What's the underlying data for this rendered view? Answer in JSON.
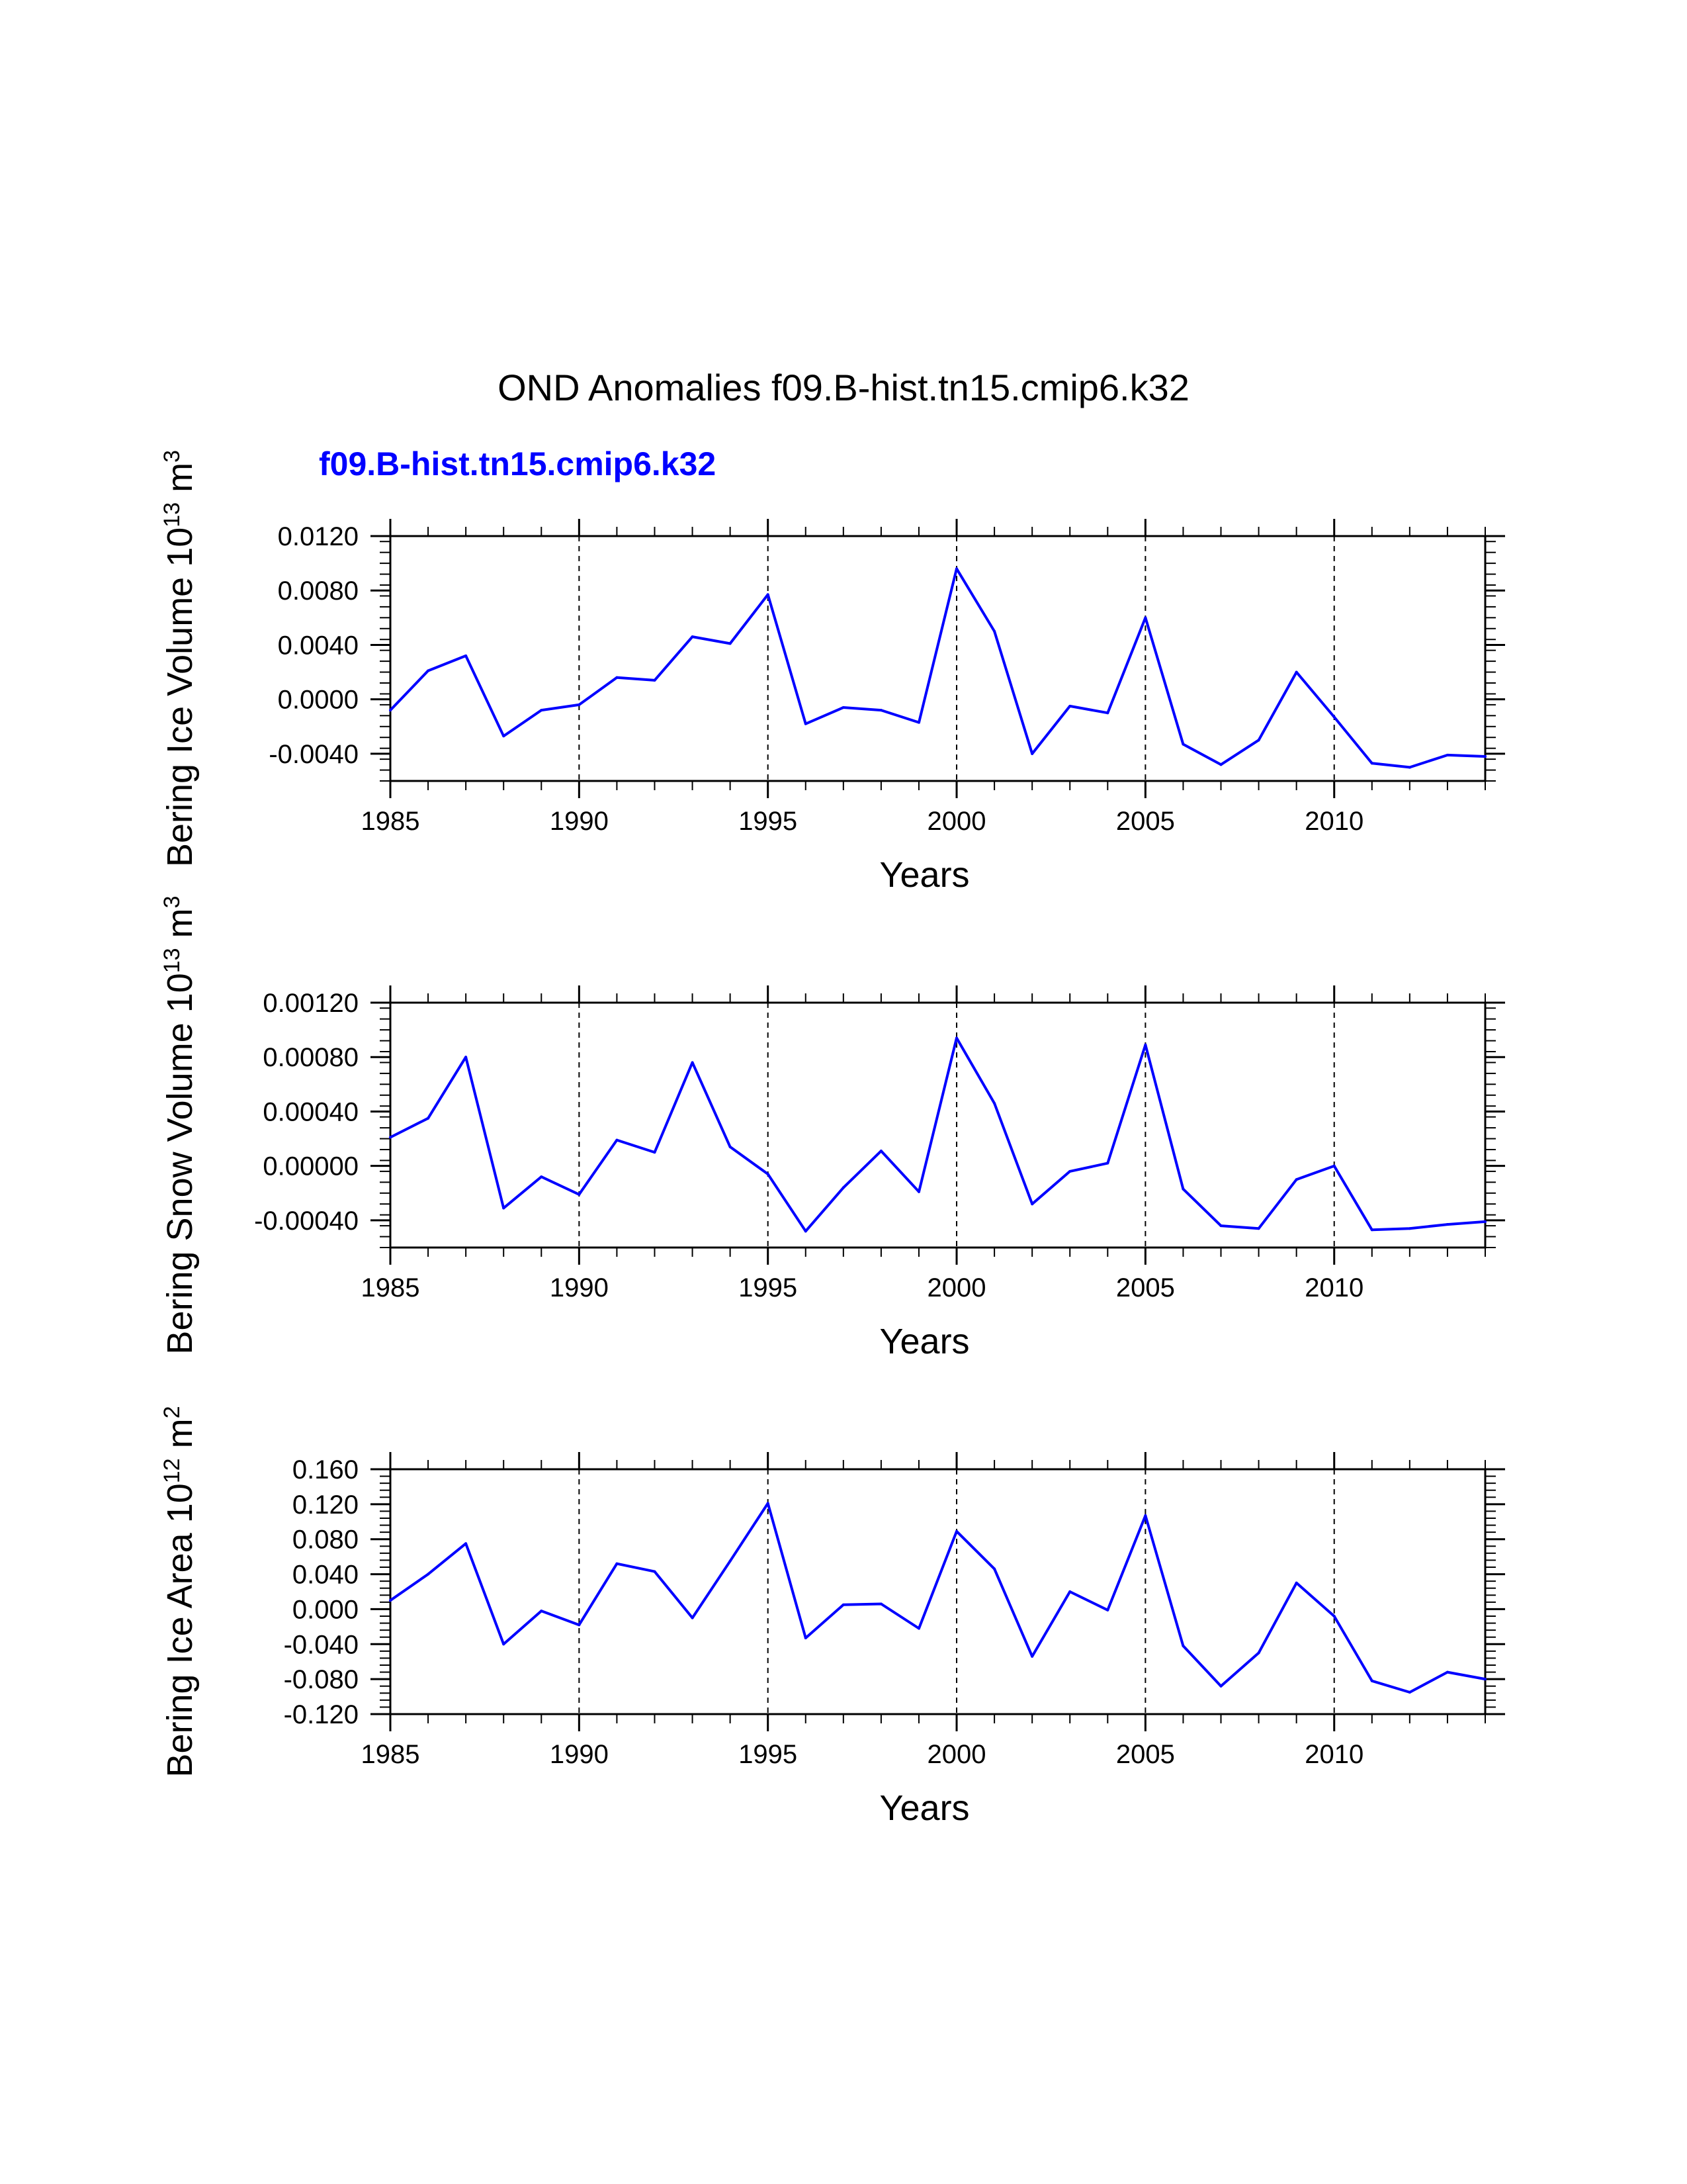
{
  "title": "OND Anomalies f09.B-hist.tn15.cmip6.k32",
  "subtitle": "f09.B-hist.tn15.cmip6.k32",
  "colors": {
    "series": "#0000ff",
    "axes": "#000000",
    "grid": "#000000",
    "subtitle": "#0000ff"
  },
  "chart_data": [
    {
      "type": "line",
      "ylabel": {
        "main": "Bering Ice Volume 10",
        "exp": "13",
        "unit": " m",
        "unit_exp": "3"
      },
      "xlabel": "Years",
      "xlim": [
        1985,
        2014
      ],
      "ylim": [
        -0.006,
        0.012
      ],
      "x_ticks": [
        1985,
        1990,
        1995,
        2000,
        2005,
        2010
      ],
      "x_tick_labels": [
        "1985",
        "1990",
        "1995",
        "2000",
        "2005",
        "2010"
      ],
      "y_ticks": [
        -0.004,
        0.0,
        0.004,
        0.008,
        0.012
      ],
      "y_tick_labels": [
        "-0.0040",
        "0.0000",
        "0.0040",
        "0.0080",
        "0.0120"
      ],
      "y_minor_step": 0.0008,
      "grid_x": [
        1990,
        1995,
        2000,
        2005,
        2010
      ],
      "series": [
        {
          "name": "f09.B-hist.tn15.cmip6.k32",
          "x": [
            1985,
            1986,
            1987,
            1988,
            1989,
            1990,
            1991,
            1992,
            1993,
            1994,
            1995,
            1996,
            1997,
            1998,
            1999,
            2000,
            2001,
            2002,
            2003,
            2004,
            2005,
            2006,
            2007,
            2008,
            2009,
            2010,
            2011,
            2012,
            2013,
            2014
          ],
          "values": [
            -0.0008,
            0.0021,
            0.0032,
            -0.0027,
            -0.0008,
            -0.0004,
            0.0016,
            0.0014,
            0.0046,
            0.0041,
            0.0077,
            -0.0018,
            -0.0006,
            -0.0008,
            -0.0017,
            0.0096,
            0.005,
            -0.004,
            -0.0005,
            -0.001,
            0.006,
            -0.0033,
            -0.0048,
            -0.003,
            0.002,
            -0.0013,
            -0.0047,
            -0.005,
            -0.0041,
            -0.0042
          ]
        }
      ]
    },
    {
      "type": "line",
      "ylabel": {
        "main": "Bering Snow Volume 10",
        "exp": "13",
        "unit": " m",
        "unit_exp": "3"
      },
      "xlabel": "Years",
      "xlim": [
        1985,
        2014
      ],
      "ylim": [
        -0.0006,
        0.0012
      ],
      "x_ticks": [
        1985,
        1990,
        1995,
        2000,
        2005,
        2010
      ],
      "x_tick_labels": [
        "1985",
        "1990",
        "1995",
        "2000",
        "2005",
        "2010"
      ],
      "y_ticks": [
        -0.0004,
        0.0,
        0.0004,
        0.0008,
        0.0012
      ],
      "y_tick_labels": [
        "-0.00040",
        "0.00000",
        "0.00040",
        "0.00080",
        "0.00120"
      ],
      "y_minor_step": 8e-05,
      "grid_x": [
        1990,
        1995,
        2000,
        2005,
        2010
      ],
      "series": [
        {
          "name": "f09.B-hist.tn15.cmip6.k32",
          "x": [
            1985,
            1986,
            1987,
            1988,
            1989,
            1990,
            1991,
            1992,
            1993,
            1994,
            1995,
            1996,
            1997,
            1998,
            1999,
            2000,
            2001,
            2002,
            2003,
            2004,
            2005,
            2006,
            2007,
            2008,
            2009,
            2010,
            2011,
            2012,
            2013,
            2014
          ],
          "values": [
            0.00021,
            0.00035,
            0.0008,
            -0.00031,
            -8e-05,
            -0.00021,
            0.00019,
            0.0001,
            0.00076,
            0.00014,
            -6e-05,
            -0.00048,
            -0.00016,
            0.00011,
            -0.00019,
            0.00094,
            0.00046,
            -0.00028,
            -4e-05,
            2e-05,
            0.00089,
            -0.00017,
            -0.00044,
            -0.00046,
            -0.0001,
            0.0,
            -0.00047,
            -0.00046,
            -0.00043,
            -0.00041
          ]
        }
      ]
    },
    {
      "type": "line",
      "ylabel": {
        "main": "Bering Ice Area 10",
        "exp": "12",
        "unit": " m",
        "unit_exp": "2"
      },
      "xlabel": "Years",
      "xlim": [
        1985,
        2014
      ],
      "ylim": [
        -0.12,
        0.16
      ],
      "x_ticks": [
        1985,
        1990,
        1995,
        2000,
        2005,
        2010
      ],
      "x_tick_labels": [
        "1985",
        "1990",
        "1995",
        "2000",
        "2005",
        "2010"
      ],
      "y_ticks": [
        -0.12,
        -0.08,
        -0.04,
        0.0,
        0.04,
        0.08,
        0.12,
        0.16
      ],
      "y_tick_labels": [
        "-0.120",
        "-0.080",
        "-0.040",
        "0.000",
        "0.040",
        "0.080",
        "0.120",
        "0.160"
      ],
      "y_minor_step": 0.008,
      "grid_x": [
        1990,
        1995,
        2000,
        2005,
        2010
      ],
      "series": [
        {
          "name": "f09.B-hist.tn15.cmip6.k32",
          "x": [
            1985,
            1986,
            1987,
            1988,
            1989,
            1990,
            1991,
            1992,
            1993,
            1994,
            1995,
            1996,
            1997,
            1998,
            1999,
            2000,
            2001,
            2002,
            2003,
            2004,
            2005,
            2006,
            2007,
            2008,
            2009,
            2010,
            2011,
            2012,
            2013,
            2014
          ],
          "values": [
            0.01,
            0.04,
            0.075,
            -0.04,
            -0.002,
            -0.018,
            0.052,
            0.043,
            -0.01,
            0.055,
            0.121,
            -0.033,
            0.005,
            0.006,
            -0.022,
            0.089,
            0.046,
            -0.054,
            0.02,
            -0.001,
            0.107,
            -0.042,
            -0.088,
            -0.05,
            0.03,
            -0.008,
            -0.082,
            -0.095,
            -0.072,
            -0.08
          ]
        }
      ]
    }
  ]
}
